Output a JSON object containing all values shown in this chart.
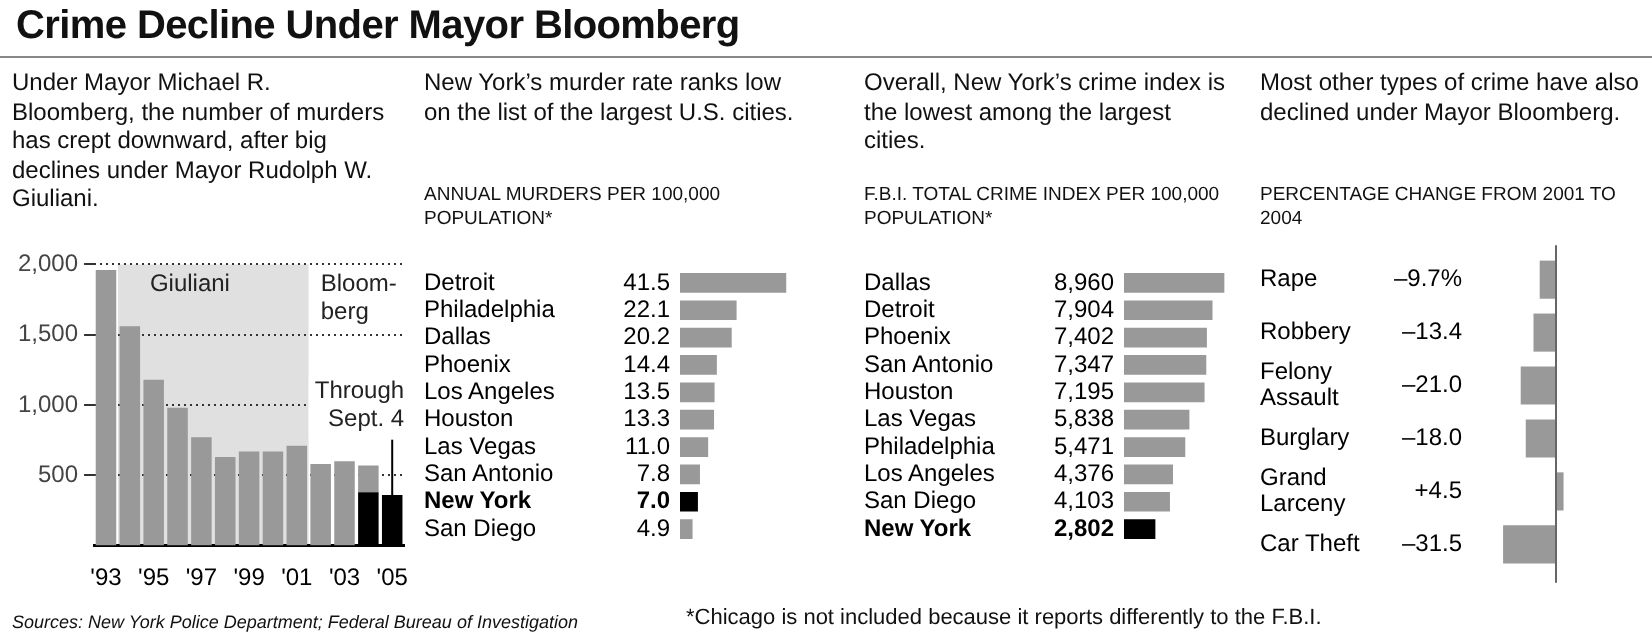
{
  "chart_data": [
    {
      "type": "bar",
      "title": "Crime Decline Under Mayor Bloomberg",
      "subtitle": "Under Mayor Michael R. Bloomberg, the number of murders has crept downward, after big declines under Mayor Rudolph W. Giuliani.",
      "categories": [
        "'93",
        null,
        "'95",
        null,
        "'97",
        null,
        "'99",
        null,
        "'01",
        null,
        "'03",
        null,
        "'05"
      ],
      "stacked": true,
      "series": [
        {
          "color": "#000000",
          "values": [
            null,
            null,
            null,
            null,
            null,
            null,
            null,
            null,
            null,
            null,
            null,
            380,
            360
          ]
        },
        {
          "color": "#999999",
          "values": [
            1960,
            1560,
            1180,
            980,
            770,
            630,
            670,
            670,
            710,
            580,
            600,
            190,
            null
          ]
        }
      ],
      "ylim": [
        0,
        2000
      ],
      "yticks": [
        500,
        {
          "value": 1000,
          "label": "1,000"
        },
        {
          "value": 1500,
          "label": "1,500"
        },
        {
          "value": 2000,
          "label": "2,000"
        }
      ],
      "grid": "y",
      "bands": [
        {
          "axis": "x",
          "from": "'93",
          "to": "'01",
          "label": "Giuliani",
          "color": "#e0e0e0"
        },
        {
          "axis": "x",
          "from": "'01",
          "to": "'05",
          "label": "Bloom-\nberg",
          "color": "#ffffff"
        }
      ],
      "annotations": [
        {
          "text": "Through Sept. 4",
          "x": "'05",
          "y": 355
        },
        "Sources: New York Police Department; Federal Bureau of Investigation"
      ]
    },
    {
      "type": "bar",
      "orientation": "horizontal",
      "title": "New York’s murder rate ranks low on the list of the largest U.S. cities.",
      "subtitle": "ANNUAL MURDERS PER 100,000 POPULATION*",
      "categories": [
        "Detroit",
        "Philadelphia",
        "Dallas",
        "Phoenix",
        "Los Angeles",
        "Houston",
        "Las Vegas",
        "San Antonio",
        "New York",
        "San Diego"
      ],
      "values": [
        41.5,
        22.1,
        20.2,
        14.4,
        13.5,
        13.3,
        11.0,
        7.8,
        7.0,
        4.9
      ],
      "colors": [
        "#999999",
        "#999999",
        "#999999",
        "#999999",
        "#999999",
        "#999999",
        "#999999",
        "#999999",
        "#000000",
        "#999999"
      ],
      "value_labels": [
        "41.5",
        "22.1",
        "20.2",
        "14.4",
        "13.5",
        "13.3",
        "11.0",
        "7.8",
        "7.0",
        "4.9"
      ],
      "annotations": [
        "*Chicago is not included because it reports differently to the F.B.I."
      ]
    },
    {
      "type": "bar",
      "orientation": "horizontal",
      "title": "Overall, New York’s crime index is the lowest among the largest cities.",
      "subtitle": "F.B.I. TOTAL CRIME INDEX PER 100,000 POPULATION*",
      "categories": [
        "Dallas",
        "Detroit",
        "Phoenix",
        "San Antonio",
        "Houston",
        "Las Vegas",
        "Philadelphia",
        "Los Angeles",
        "San Diego",
        "New York"
      ],
      "values": [
        8960,
        7904,
        7402,
        7347,
        7195,
        5838,
        5471,
        4376,
        4103,
        2802
      ],
      "colors": [
        "#999999",
        "#999999",
        "#999999",
        "#999999",
        "#999999",
        "#999999",
        "#999999",
        "#999999",
        "#999999",
        "#000000"
      ],
      "value_labels": [
        "8,960",
        "7,904",
        "7,402",
        "7,347",
        "7,195",
        "5,838",
        "5,471",
        "4,376",
        "4,103",
        "2,802"
      ]
    },
    {
      "type": "bar",
      "orientation": "horizontal",
      "title": "Most other types of crime have also declined under Mayor Bloomberg.",
      "subtitle": "PERCENTAGE CHANGE FROM 2001 TO 2004",
      "categories": [
        "Rape",
        "Robbery",
        "Felony Assault",
        "Burglary",
        "Grand Larceny",
        "Car Theft"
      ],
      "values": [
        -9.7,
        -13.4,
        -21.0,
        -18.0,
        4.5,
        -31.5
      ],
      "color": "#999999",
      "value_labels": [
        "–9.7%",
        "–13.4",
        "–21.0",
        "–18.0",
        "+4.5",
        "–31.5"
      ]
    }
  ]
}
